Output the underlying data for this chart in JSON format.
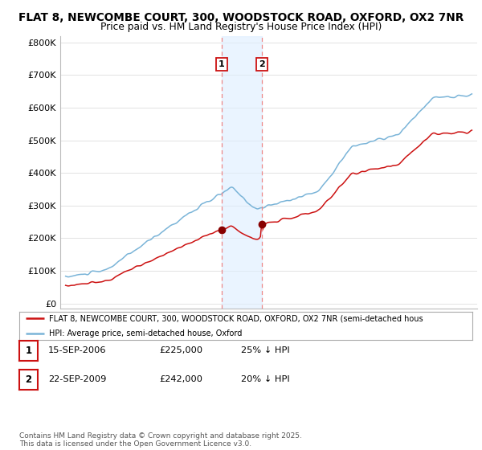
{
  "title1": "FLAT 8, NEWCOMBE COURT, 300, WOODSTOCK ROAD, OXFORD, OX2 7NR",
  "title2": "Price paid vs. HM Land Registry's House Price Index (HPI)",
  "yticks": [
    0,
    100000,
    200000,
    300000,
    400000,
    500000,
    600000,
    700000,
    800000
  ],
  "ytick_labels": [
    "£0",
    "£100K",
    "£200K",
    "£300K",
    "£400K",
    "£500K",
    "£600K",
    "£700K",
    "£800K"
  ],
  "hpi_color": "#7ab4d8",
  "price_color": "#cc1111",
  "marker_color": "#880000",
  "vline_color": "#ee8888",
  "transaction1_date": 2006.71,
  "transaction1_price": 225000,
  "transaction2_date": 2009.72,
  "transaction2_price": 242000,
  "legend_label_red": "FLAT 8, NEWCOMBE COURT, 300, WOODSTOCK ROAD, OXFORD, OX2 7NR (semi-detached hous",
  "legend_label_blue": "HPI: Average price, semi-detached house, Oxford",
  "table_row1": [
    "1",
    "15-SEP-2006",
    "£225,000",
    "25% ↓ HPI"
  ],
  "table_row2": [
    "2",
    "22-SEP-2009",
    "£242,000",
    "20% ↓ HPI"
  ],
  "footer": "Contains HM Land Registry data © Crown copyright and database right 2025.\nThis data is licensed under the Open Government Licence v3.0.",
  "bg_color": "#ffffff",
  "grid_color": "#dddddd"
}
